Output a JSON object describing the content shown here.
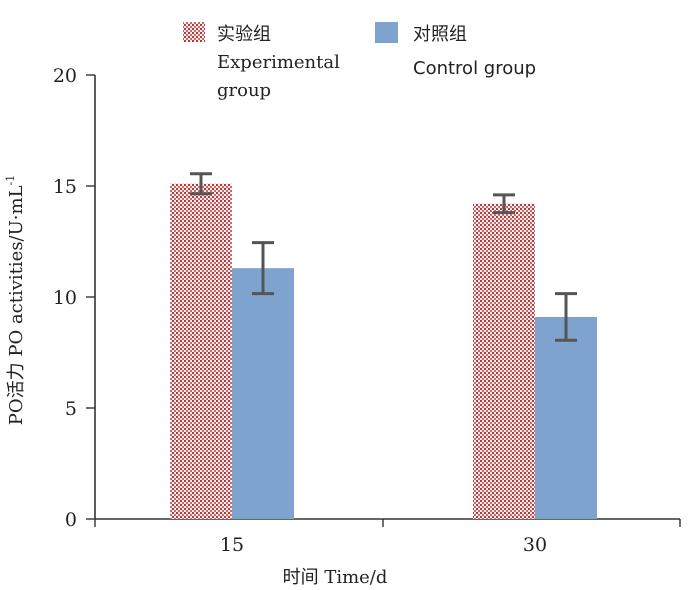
{
  "chart_data": {
    "type": "bar",
    "title": "",
    "xlabel": "时间 Time/d",
    "ylabel": "PO活力 PO activities/U·mL",
    "ylabel_superscript": "-1",
    "categories": [
      "15",
      "30"
    ],
    "ylim": [
      0,
      20
    ],
    "yticks": [
      "0",
      "5",
      "10",
      "15",
      "20"
    ],
    "series": [
      {
        "name": "实验组",
        "name_en_line1": "Experimental",
        "name_en_line2": "group",
        "values": [
          15.1,
          14.2
        ],
        "errors": [
          0.45,
          0.4
        ],
        "color": "#b33a3a",
        "pattern": "dotted"
      },
      {
        "name": "对照组",
        "name_en_line1": "Control group",
        "values": [
          11.3,
          9.1
        ],
        "errors": [
          1.15,
          1.05
        ],
        "color": "#7fa3cf",
        "pattern": "solid"
      }
    ],
    "legend_position": "top"
  }
}
